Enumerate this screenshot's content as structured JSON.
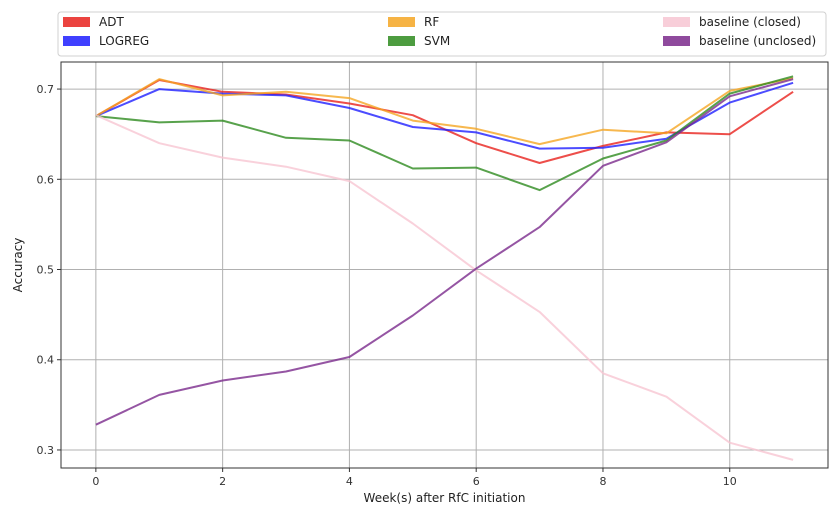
{
  "chart_data": {
    "type": "line",
    "title": "",
    "xlabel": "Week(s) after RfC initiation",
    "ylabel": "Accuracy",
    "xlim": [
      -0.55,
      11.55
    ],
    "ylim": [
      0.28,
      0.73
    ],
    "x": [
      0,
      1,
      2,
      3,
      4,
      5,
      6,
      7,
      8,
      9,
      10,
      11
    ],
    "x_ticks": [
      "0",
      "2",
      "4",
      "6",
      "8",
      "10"
    ],
    "x_tick_values": [
      0,
      2,
      4,
      6,
      8,
      10
    ],
    "y_ticks": [
      "0.3",
      "0.4",
      "0.5",
      "0.6",
      "0.7"
    ],
    "y_tick_values": [
      0.3,
      0.4,
      0.5,
      0.6,
      0.7
    ],
    "grid": true,
    "legend_position": "top",
    "series": [
      {
        "name": "ADT",
        "color": "#e8221d",
        "values": [
          0.67,
          0.71,
          0.697,
          0.694,
          0.684,
          0.671,
          0.64,
          0.618,
          0.637,
          0.652,
          0.65,
          0.697
        ]
      },
      {
        "name": "LOGREG",
        "color": "#1f1fff",
        "values": [
          0.67,
          0.7,
          0.695,
          0.693,
          0.679,
          0.658,
          0.652,
          0.634,
          0.635,
          0.645,
          0.685,
          0.707
        ]
      },
      {
        "name": "RF",
        "color": "#f5a623",
        "values": [
          0.67,
          0.711,
          0.693,
          0.697,
          0.69,
          0.665,
          0.656,
          0.639,
          0.655,
          0.651,
          0.698,
          0.712
        ]
      },
      {
        "name": "SVM",
        "color": "#2e8b1f",
        "values": [
          0.67,
          0.663,
          0.665,
          0.646,
          0.643,
          0.612,
          0.613,
          0.588,
          0.623,
          0.643,
          0.695,
          0.714
        ]
      },
      {
        "name": "baseline (closed)",
        "color": "#f7c6d2",
        "values": [
          0.671,
          0.64,
          0.624,
          0.614,
          0.598,
          0.551,
          0.499,
          0.453,
          0.385,
          0.359,
          0.308,
          0.289
        ]
      },
      {
        "name": "baseline (unclosed)",
        "color": "#7b2a8c",
        "values": [
          0.328,
          0.361,
          0.377,
          0.387,
          0.403,
          0.449,
          0.501,
          0.547,
          0.615,
          0.641,
          0.692,
          0.711
        ]
      }
    ]
  }
}
